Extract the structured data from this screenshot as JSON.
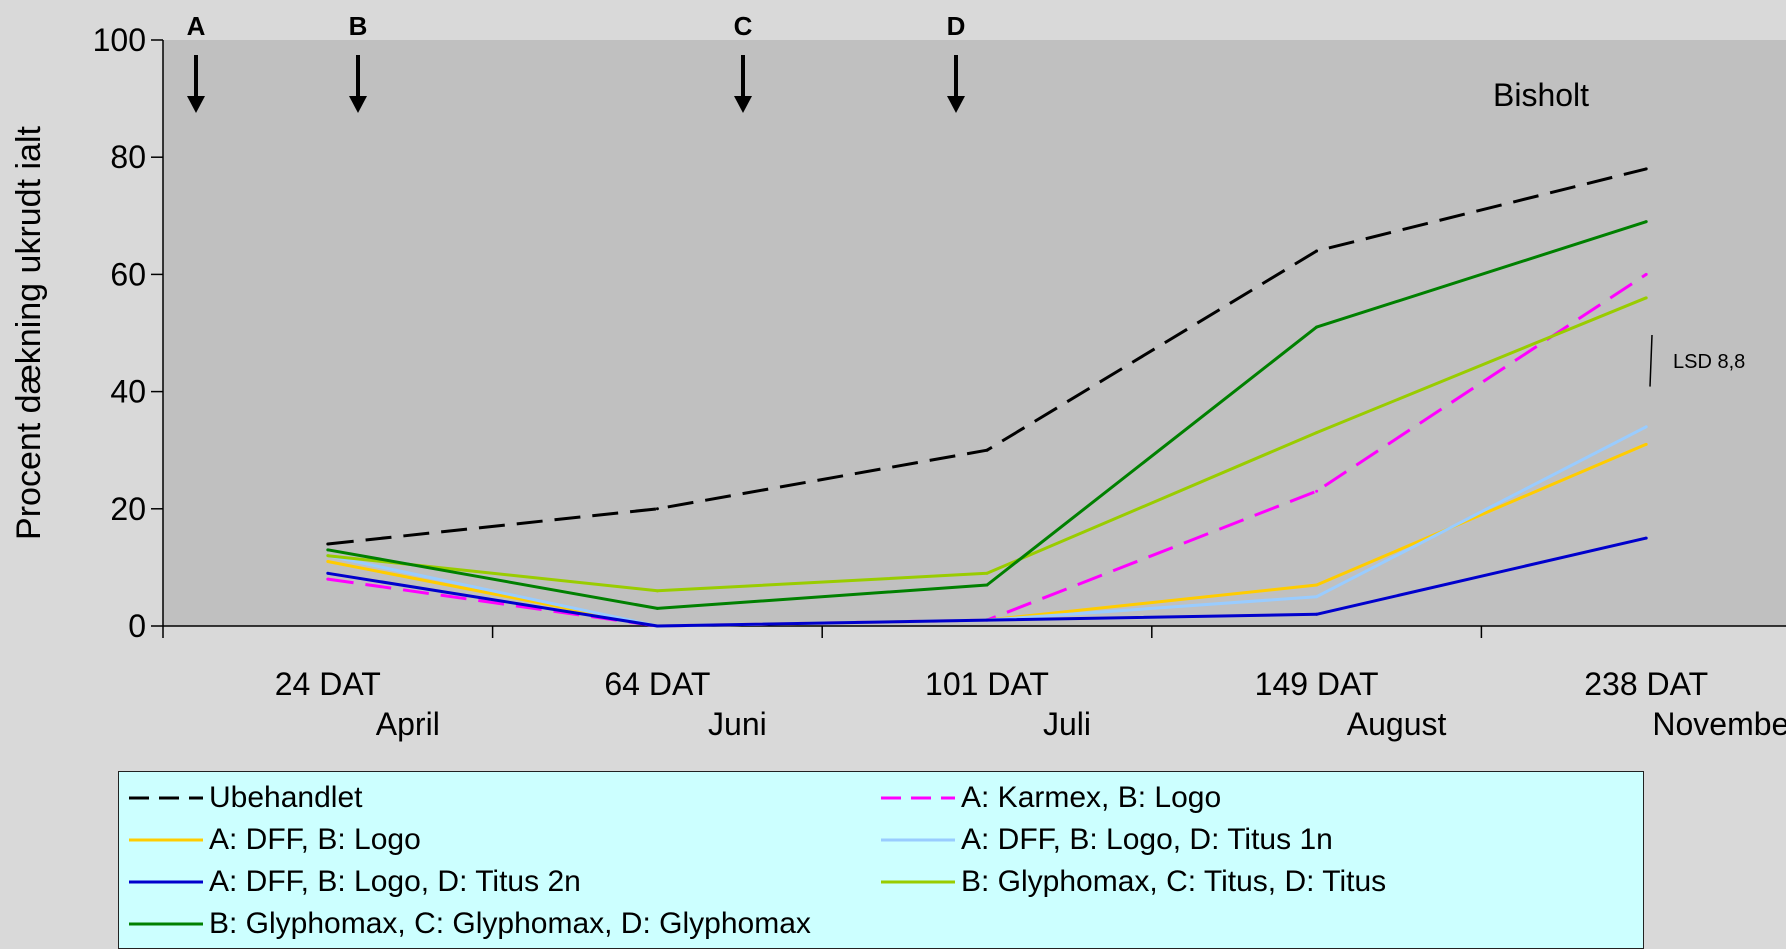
{
  "chart_data": {
    "type": "line",
    "title": "",
    "xlabel": "",
    "ylabel": "Procent dækning ukrudt ialt",
    "ylim": [
      0,
      100
    ],
    "yticks": [
      0,
      20,
      40,
      60,
      80,
      100
    ],
    "categories": [
      "24 DAT",
      "64 DAT",
      "101 DAT",
      "149 DAT",
      "238 DAT"
    ],
    "months": [
      "April",
      "Juni",
      "Juli",
      "August",
      "November"
    ],
    "site_label": "Bisholt",
    "lsd": {
      "label": "LSD 8,8",
      "value": 8.8
    },
    "treatment_markers": [
      {
        "label": "A"
      },
      {
        "label": "B"
      },
      {
        "label": "C"
      },
      {
        "label": "D"
      }
    ],
    "grid": false,
    "legend_position": "bottom",
    "series": [
      {
        "name": "Ubehandlet",
        "values": [
          14,
          20,
          30,
          64,
          78
        ],
        "color": "#000000",
        "dash": "dashed"
      },
      {
        "name": "A: Karmex, B: Logo",
        "values": [
          8,
          0,
          1,
          23,
          60
        ],
        "color": "#ff00ff",
        "dash": "dashed"
      },
      {
        "name": "A: DFF, B: Logo",
        "values": [
          11,
          0,
          1,
          7,
          31
        ],
        "color": "#ffcc00",
        "dash": "solid"
      },
      {
        "name": "A: DFF, B: Logo, D: Titus 1n",
        "values": [
          12,
          0,
          1,
          5,
          34
        ],
        "color": "#99ccff",
        "dash": "solid"
      },
      {
        "name": "A: DFF, B: Logo, D: Titus 2n",
        "values": [
          9,
          0,
          1,
          2,
          15
        ],
        "color": "#0000cc",
        "dash": "solid"
      },
      {
        "name": "B: Glyphomax, C: Titus, D: Titus",
        "values": [
          12,
          6,
          9,
          33,
          56
        ],
        "color": "#99cc00",
        "dash": "solid"
      },
      {
        "name": "B: Glyphomax, C: Glyphomax, D: Glyphomax",
        "values": [
          13,
          3,
          7,
          51,
          69
        ],
        "color": "#008000",
        "dash": "solid"
      }
    ]
  }
}
